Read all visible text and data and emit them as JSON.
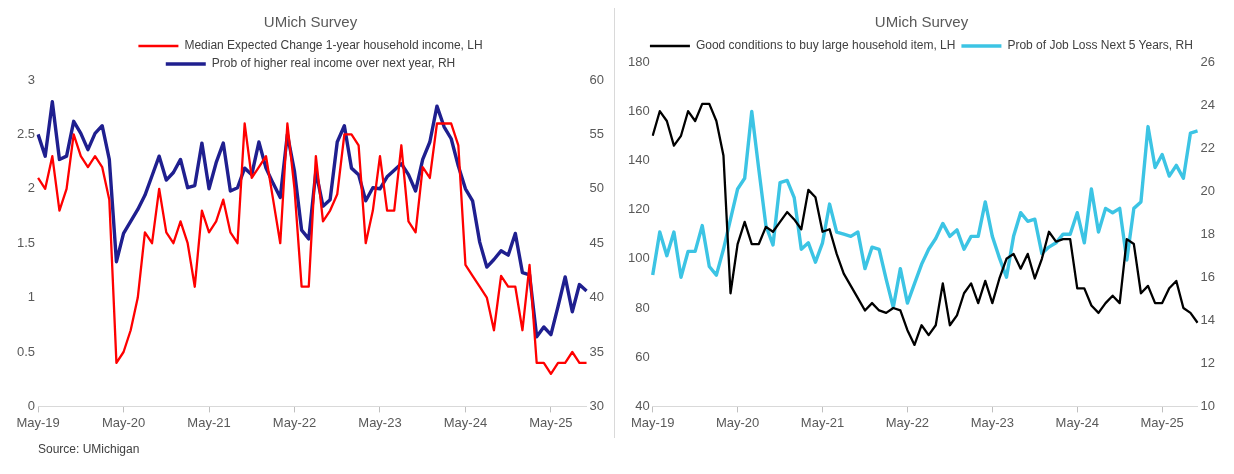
{
  "chart_data": [
    {
      "type": "line",
      "title": "UMich Survey",
      "legend": "top",
      "grid": false,
      "categories": [
        "May-19",
        null,
        null,
        null,
        null,
        null,
        null,
        null,
        null,
        null,
        null,
        null,
        "May-20",
        null,
        null,
        null,
        null,
        null,
        null,
        null,
        null,
        null,
        null,
        null,
        "May-21",
        null,
        null,
        null,
        null,
        null,
        null,
        null,
        null,
        null,
        null,
        null,
        "May-22",
        null,
        null,
        null,
        null,
        null,
        null,
        null,
        null,
        null,
        null,
        null,
        "May-23",
        null,
        null,
        null,
        null,
        null,
        null,
        null,
        null,
        null,
        null,
        null,
        "May-24",
        null,
        null,
        null,
        null,
        null,
        null,
        null,
        null,
        null,
        null,
        null,
        "May-25",
        null,
        null,
        null,
        null,
        null
      ],
      "ylim": [
        0,
        3
      ],
      "yticks": [
        0,
        0.5,
        1,
        1.5,
        2,
        2.5,
        3
      ],
      "y2lim": [
        30,
        60
      ],
      "y2ticks": [
        30,
        35,
        40,
        45,
        50,
        55,
        60
      ],
      "annotations": [
        "Source: UMichigan"
      ],
      "series": [
        {
          "name": "Median Expected Change 1-year household income, LH",
          "color": "#ff0000",
          "values": [
            2.1,
            2.0,
            2.3,
            1.8,
            2.0,
            2.5,
            2.3,
            2.2,
            2.3,
            2.2,
            1.9,
            0.4,
            0.5,
            0.7,
            1.0,
            1.6,
            1.5,
            2.0,
            1.6,
            1.5,
            1.7,
            1.5,
            1.1,
            1.8,
            1.6,
            1.7,
            1.9,
            1.6,
            1.5,
            2.6,
            2.1,
            2.2,
            2.3,
            1.9,
            1.5,
            2.6,
            2.0,
            1.1,
            1.1,
            2.3,
            1.7,
            1.8,
            1.95,
            2.5,
            2.5,
            2.4,
            1.5,
            1.8,
            2.3,
            1.8,
            1.8,
            2.4,
            1.7,
            1.6,
            2.2,
            2.1,
            2.6,
            2.6,
            2.6,
            2.4,
            1.3,
            1.2,
            1.1,
            1.0,
            0.7,
            1.2,
            1.1,
            1.1,
            0.7,
            1.3,
            0.4,
            0.4,
            0.3,
            0.4,
            0.4,
            0.5,
            0.4,
            0.4
          ]
        },
        {
          "name": "Prob of higher real income over next year, RH",
          "color": "#1f1f8f",
          "axis": "y2",
          "values": [
            55.0,
            53.0,
            58.0,
            52.7,
            53.0,
            56.2,
            55.1,
            53.6,
            55.1,
            55.8,
            52.7,
            43.3,
            45.9,
            47.0,
            48.1,
            49.4,
            51.2,
            53.0,
            50.8,
            51.5,
            52.7,
            50.1,
            50.3,
            54.2,
            50.0,
            52.4,
            54.2,
            49.8,
            50.1,
            51.9,
            51.3,
            54.3,
            51.9,
            50.5,
            49.2,
            55.0,
            51.6,
            46.2,
            45.4,
            51.6,
            48.4,
            49.0,
            54.3,
            55.8,
            51.9,
            51.3,
            48.9,
            50.1,
            50.0,
            51.1,
            51.7,
            52.3,
            51.3,
            49.8,
            52.7,
            54.3,
            57.6,
            55.7,
            54.6,
            52.1,
            50.0,
            48.9,
            45.1,
            42.8,
            43.5,
            44.3,
            43.9,
            45.9,
            42.3,
            42.1,
            36.4,
            37.3,
            36.6,
            39.2,
            41.9,
            38.7,
            41.2,
            40.6
          ]
        }
      ]
    },
    {
      "type": "line",
      "title": "UMich Survey",
      "legend": "top",
      "grid": false,
      "categories": [
        "May-19",
        null,
        null,
        null,
        null,
        null,
        null,
        null,
        null,
        null,
        null,
        null,
        "May-20",
        null,
        null,
        null,
        null,
        null,
        null,
        null,
        null,
        null,
        null,
        null,
        "May-21",
        null,
        null,
        null,
        null,
        null,
        null,
        null,
        null,
        null,
        null,
        null,
        "May-22",
        null,
        null,
        null,
        null,
        null,
        null,
        null,
        null,
        null,
        null,
        null,
        "May-23",
        null,
        null,
        null,
        null,
        null,
        null,
        null,
        null,
        null,
        null,
        null,
        "May-24",
        null,
        null,
        null,
        null,
        null,
        null,
        null,
        null,
        null,
        null,
        null,
        "May-25",
        null,
        null,
        null,
        null,
        null
      ],
      "ylim": [
        40,
        180
      ],
      "yticks": [
        40,
        60,
        80,
        100,
        120,
        140,
        160,
        180
      ],
      "y2lim": [
        10,
        26
      ],
      "y2ticks": [
        10,
        12,
        14,
        16,
        18,
        20,
        22,
        24,
        26
      ],
      "series": [
        {
          "name": "Good conditions to buy large household item, LH",
          "color": "#000000",
          "values": [
            150,
            160,
            156,
            146,
            150,
            160,
            156,
            163,
            163,
            156,
            142,
            86,
            106,
            115,
            106,
            106,
            113,
            111,
            115,
            119,
            116,
            112,
            128,
            125,
            111,
            112,
            102,
            94,
            89,
            84,
            79,
            82,
            79,
            78,
            80,
            79,
            71,
            65,
            73,
            69,
            73,
            90,
            73,
            77,
            86,
            90,
            82,
            91,
            82,
            92,
            100,
            102,
            96,
            102,
            92,
            100,
            111,
            107,
            108,
            108,
            88,
            88,
            81,
            78,
            82,
            85,
            82,
            108,
            106,
            86,
            89,
            82,
            82,
            88,
            91,
            80,
            78,
            74
          ]
        },
        {
          "name": "Prob of Job Loss Next 5 Years, RH",
          "color": "#3cc4e4",
          "axis": "y2",
          "values": [
            16.1,
            18.1,
            17.0,
            18.1,
            16.0,
            17.2,
            17.2,
            18.4,
            16.5,
            16.1,
            17.3,
            18.7,
            20.1,
            20.6,
            23.7,
            21.0,
            18.4,
            17.5,
            20.4,
            20.5,
            19.7,
            17.3,
            17.6,
            16.7,
            17.6,
            19.4,
            18.1,
            18.0,
            17.9,
            18.1,
            16.4,
            17.4,
            17.3,
            15.9,
            14.6,
            16.4,
            14.8,
            15.7,
            16.6,
            17.3,
            17.8,
            18.5,
            17.9,
            18.2,
            17.3,
            17.9,
            17.9,
            19.5,
            17.9,
            16.9,
            16.0,
            17.9,
            19.0,
            18.6,
            18.7,
            17.1,
            17.4,
            17.6,
            18.0,
            18.0,
            19.0,
            17.6,
            20.1,
            18.1,
            19.2,
            19.0,
            19.2,
            16.8,
            19.2,
            19.5,
            23.0,
            21.1,
            21.7,
            20.7,
            21.2,
            20.6,
            22.7,
            22.8
          ]
        }
      ]
    }
  ]
}
